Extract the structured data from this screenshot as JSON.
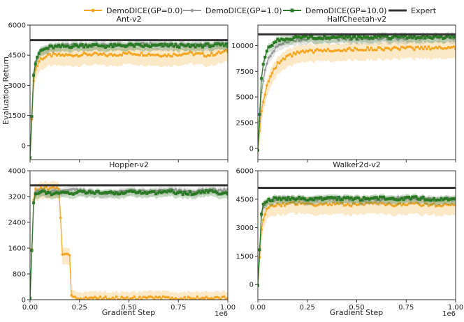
{
  "figure": {
    "ylabel": "Evaluation Return",
    "xlabel": "Gradient Step",
    "xscale_label": "1e6"
  },
  "legend": [
    {
      "name": "DemoDICE(GP=0.0)",
      "color": "#f5a623",
      "marker": "circle"
    },
    {
      "name": "DemoDICE(GP=1.0)",
      "color": "#9a9a9a",
      "marker": "diamond"
    },
    {
      "name": "DemoDICE(GP=10.0)",
      "color": "#2a7a25",
      "marker": "square"
    },
    {
      "name": "Expert",
      "color": "#333333",
      "marker": "none"
    }
  ],
  "chart_data": [
    {
      "type": "line",
      "title": "Ant-v2",
      "xlabel": "",
      "ylabel": "Evaluation Return",
      "xlim": [
        0,
        1.0
      ],
      "ylim": [
        -700,
        6000
      ],
      "yticks": [
        0,
        1500,
        3000,
        4500,
        6000
      ],
      "xticks": [],
      "expert": 5250,
      "series": [
        {
          "name": "DemoDICE(GP=0.0)",
          "x": [
            0,
            0.02,
            0.05,
            0.1,
            0.2,
            0.3,
            0.4,
            0.5,
            0.6,
            0.7,
            0.8,
            0.9,
            1.0
          ],
          "values": [
            -600,
            3600,
            4300,
            4500,
            4500,
            4550,
            4500,
            4600,
            4550,
            4500,
            4600,
            4500,
            4700
          ]
        },
        {
          "name": "DemoDICE(GP=1.0)",
          "x": [
            0,
            0.02,
            0.05,
            0.1,
            0.2,
            0.3,
            0.4,
            0.5,
            0.6,
            0.7,
            0.8,
            0.9,
            1.0
          ],
          "values": [
            -600,
            4000,
            4700,
            4900,
            5000,
            5000,
            5000,
            5000,
            5050,
            5000,
            5000,
            5000,
            5050
          ]
        },
        {
          "name": "DemoDICE(GP=10.0)",
          "x": [
            0,
            0.02,
            0.05,
            0.1,
            0.2,
            0.3,
            0.4,
            0.5,
            0.6,
            0.7,
            0.8,
            0.9,
            1.0
          ],
          "values": [
            -600,
            3900,
            4700,
            4900,
            4950,
            5000,
            4950,
            5000,
            4950,
            5000,
            4950,
            5000,
            5000
          ]
        }
      ]
    },
    {
      "type": "line",
      "title": "HalfCheetah-v2",
      "xlabel": "",
      "ylabel": "",
      "xlim": [
        0,
        1.0
      ],
      "ylim": [
        -1100,
        12000
      ],
      "yticks": [
        0,
        2500,
        5000,
        7500,
        10000
      ],
      "xticks": [],
      "expert": 11100,
      "series": [
        {
          "name": "DemoDICE(GP=0.0)",
          "x": [
            0,
            0.02,
            0.05,
            0.1,
            0.15,
            0.2,
            0.3,
            0.4,
            0.5,
            0.6,
            0.7,
            0.8,
            0.9,
            1.0
          ],
          "values": [
            -200,
            4000,
            6500,
            8200,
            8900,
            9300,
            9500,
            9600,
            9650,
            9700,
            9700,
            9750,
            9800,
            9800
          ]
        },
        {
          "name": "DemoDICE(GP=1.0)",
          "x": [
            0,
            0.02,
            0.05,
            0.1,
            0.15,
            0.2,
            0.3,
            0.4,
            0.5,
            0.6,
            0.7,
            0.8,
            0.9,
            1.0
          ],
          "values": [
            -200,
            6000,
            8800,
            10000,
            10500,
            10600,
            10700,
            10700,
            10700,
            10750,
            10700,
            10750,
            10750,
            10750
          ]
        },
        {
          "name": "DemoDICE(GP=10.0)",
          "x": [
            0,
            0.02,
            0.05,
            0.1,
            0.15,
            0.2,
            0.3,
            0.4,
            0.5,
            0.6,
            0.7,
            0.8,
            0.9,
            1.0
          ],
          "values": [
            -200,
            7500,
            9800,
            10500,
            10700,
            10800,
            10800,
            10850,
            10800,
            10850,
            10850,
            10850,
            10850,
            10850
          ]
        }
      ]
    },
    {
      "type": "line",
      "title": "Hopper-v2",
      "xlabel": "Gradient Step",
      "ylabel": "",
      "xlim": [
        0,
        1.0
      ],
      "ylim": [
        0,
        4000
      ],
      "yticks": [
        0,
        800,
        1600,
        2400,
        3200,
        4000
      ],
      "xticks": [
        "0.00",
        "0.25",
        "0.50",
        "0.75",
        "1.00"
      ],
      "expert": 3550,
      "series": [
        {
          "name": "DemoDICE(GP=0.0)",
          "x": [
            0,
            0.02,
            0.05,
            0.1,
            0.15,
            0.16,
            0.2,
            0.21,
            0.3,
            0.5,
            0.7,
            1.0
          ],
          "values": [
            50,
            3400,
            3450,
            3450,
            3450,
            1400,
            1400,
            50,
            50,
            50,
            50,
            50
          ]
        },
        {
          "name": "DemoDICE(GP=1.0)",
          "x": [
            0,
            0.02,
            0.05,
            0.1,
            0.2,
            0.3,
            0.4,
            0.5,
            0.6,
            0.7,
            0.8,
            0.9,
            1.0
          ],
          "values": [
            50,
            3300,
            3400,
            3350,
            3400,
            3350,
            3300,
            3400,
            3350,
            3400,
            3350,
            3400,
            3400
          ]
        },
        {
          "name": "DemoDICE(GP=10.0)",
          "x": [
            0,
            0.02,
            0.05,
            0.1,
            0.2,
            0.3,
            0.4,
            0.5,
            0.6,
            0.7,
            0.8,
            0.9,
            1.0
          ],
          "values": [
            50,
            3300,
            3350,
            3300,
            3300,
            3350,
            3300,
            3350,
            3300,
            3350,
            3300,
            3350,
            3300
          ]
        }
      ]
    },
    {
      "type": "line",
      "title": "Walker2d-v2",
      "xlabel": "Gradient Step",
      "ylabel": "",
      "xlim": [
        0,
        1.0
      ],
      "ylim": [
        -800,
        6000
      ],
      "yticks": [
        0,
        1500,
        3000,
        4500,
        6000
      ],
      "xticks": [
        "0.00",
        "0.25",
        "0.50",
        "0.75",
        "1.00"
      ],
      "expert": 5100,
      "series": [
        {
          "name": "DemoDICE(GP=0.0)",
          "x": [
            0,
            0.02,
            0.05,
            0.1,
            0.2,
            0.3,
            0.4,
            0.5,
            0.6,
            0.7,
            0.8,
            0.9,
            1.0
          ],
          "values": [
            -50,
            3200,
            4100,
            4200,
            4300,
            4200,
            4250,
            4200,
            4300,
            4200,
            4250,
            4200,
            4200
          ]
        },
        {
          "name": "DemoDICE(GP=1.0)",
          "x": [
            0,
            0.02,
            0.05,
            0.1,
            0.2,
            0.3,
            0.4,
            0.5,
            0.6,
            0.7,
            0.8,
            0.9,
            1.0
          ],
          "values": [
            -50,
            4000,
            4400,
            4500,
            4500,
            4500,
            4550,
            4500,
            4500,
            4550,
            4500,
            4500,
            4500
          ]
        },
        {
          "name": "DemoDICE(GP=10.0)",
          "x": [
            0,
            0.02,
            0.05,
            0.1,
            0.2,
            0.3,
            0.4,
            0.5,
            0.6,
            0.7,
            0.8,
            0.9,
            1.0
          ],
          "values": [
            -50,
            4100,
            4500,
            4500,
            4550,
            4500,
            4550,
            4500,
            4550,
            4500,
            4550,
            4500,
            4500
          ]
        }
      ]
    }
  ]
}
